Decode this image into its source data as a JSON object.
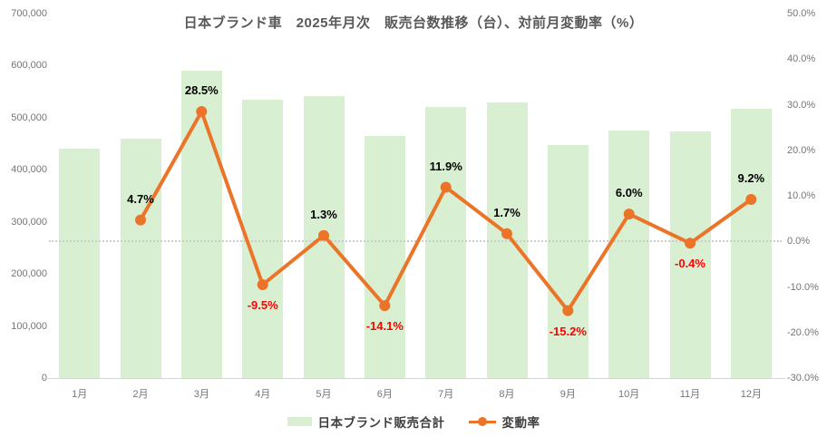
{
  "title": "日本ブランド車　2025年月次　販売台数推移（台）、対前月変動率（%）",
  "colors": {
    "bar_fill": "#d9efd2",
    "line": "#ec7428",
    "label_positive": "#000000",
    "label_negative": "#ff0000",
    "axis_text": "#757575",
    "title_text": "#595959",
    "zero_line": "#cccccc",
    "axis_line": "#d6d6d6",
    "background": "#ffffff"
  },
  "legend": {
    "bar_label": "日本ブランド販売合計",
    "line_label": "変動率"
  },
  "chart_data": {
    "type": "bar",
    "combo": "bar+line",
    "title": "日本ブランド車　2025年月次　販売台数推移（台）、対前月変動率（%）",
    "categories": [
      "1月",
      "2月",
      "3月",
      "4月",
      "5月",
      "6月",
      "7月",
      "8月",
      "9月",
      "10月",
      "11月",
      "12月"
    ],
    "series": [
      {
        "name": "日本ブランド販売合計",
        "type": "bar",
        "axis": "left",
        "values": [
          440000,
          460000,
          590000,
          534000,
          541000,
          465000,
          520000,
          529000,
          448000,
          475000,
          473000,
          517000
        ]
      },
      {
        "name": "変動率",
        "type": "line",
        "axis": "right",
        "values": [
          null,
          4.7,
          28.5,
          -9.5,
          1.3,
          -14.1,
          11.9,
          1.7,
          -15.2,
          6.0,
          -0.4,
          9.2
        ],
        "labels": [
          "",
          "4.7%",
          "28.5%",
          "-9.5%",
          "1.3%",
          "-14.1%",
          "11.9%",
          "1.7%",
          "-15.2%",
          "6.0%",
          "-0.4%",
          "9.2%"
        ]
      }
    ],
    "left_axis": {
      "min": 0,
      "max": 700000,
      "step": 100000,
      "ticks": [
        "700,000",
        "600,000",
        "500,000",
        "400,000",
        "300,000",
        "200,000",
        "100,000",
        "0"
      ]
    },
    "right_axis": {
      "min": -30,
      "max": 50,
      "step": 10,
      "ticks": [
        "50.0%",
        "40.0%",
        "30.0%",
        "20.0%",
        "10.0%",
        "0.0%",
        "-10.0%",
        "-20.0%",
        "-30.0%"
      ]
    },
    "zero_line": true,
    "grid": false,
    "legend_position": "bottom"
  }
}
